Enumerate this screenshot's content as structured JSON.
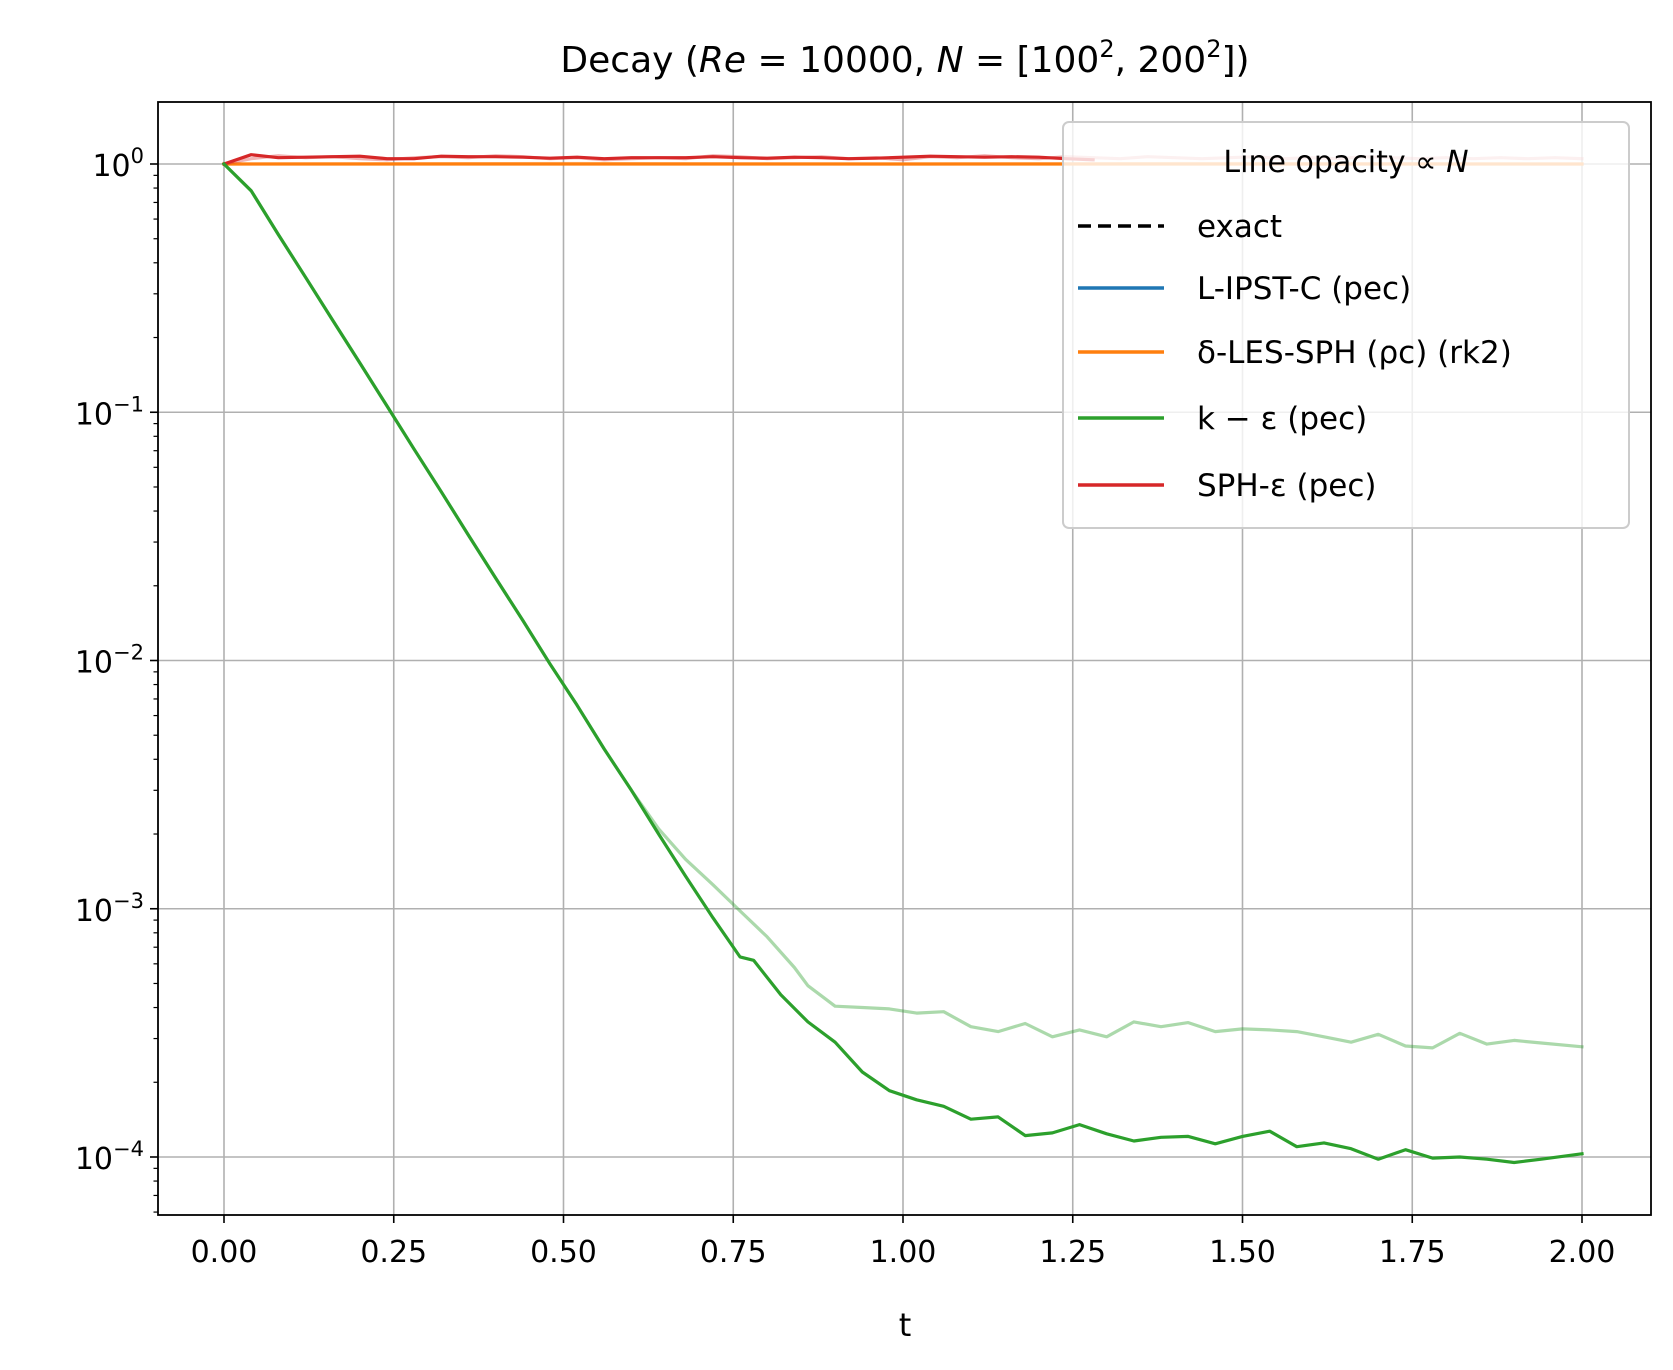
{
  "chart_data": {
    "type": "line",
    "title": "Decay  (Re = 10000, N = [100², 200²])",
    "title_parts": {
      "prefix": "Decay  (",
      "re_symbol": "Re",
      "re_value": " = 10000, ",
      "n_symbol": "N",
      "n_value": " = [100",
      "exp1": "2",
      "sep": ", 200",
      "exp2": "2",
      "suffix": "])"
    },
    "xlabel": "t",
    "ylabel": "",
    "xlim": [
      -0.1,
      2.1
    ],
    "ylim": [
      5.5e-05,
      1.8
    ],
    "yscale": "log",
    "grid": true,
    "x_ticks": [
      "0.00",
      "0.25",
      "0.50",
      "0.75",
      "1.00",
      "1.25",
      "1.50",
      "1.75",
      "2.00"
    ],
    "x_tick_values": [
      0,
      0.25,
      0.5,
      0.75,
      1.0,
      1.25,
      1.5,
      1.75,
      2.0
    ],
    "y_ticks": [
      {
        "value": 1,
        "base": "10",
        "exp": "0"
      },
      {
        "value": 0.1,
        "base": "10",
        "exp": "−1"
      },
      {
        "value": 0.01,
        "base": "10",
        "exp": "−2"
      },
      {
        "value": 0.001,
        "base": "10",
        "exp": "−3"
      },
      {
        "value": 0.0001,
        "base": "10",
        "exp": "−4"
      }
    ],
    "legend": {
      "placement": "upper right",
      "title": "Line opacity ∝ N",
      "title_text": "Line opacity  ∝  ",
      "title_symbol": "N",
      "entries": [
        {
          "label": "exact",
          "color": "#000000",
          "dash": true
        },
        {
          "label": "L-IPST-C (pec)",
          "color": "#1f77b4"
        },
        {
          "label": "δ-LES-SPH (ρc) (rk2)",
          "color": "#ff7f0e"
        },
        {
          "label": "k − ε (pec)",
          "color": "#2ca02c"
        },
        {
          "label": "SPH-ε (pec)",
          "color": "#d62728"
        }
      ]
    },
    "series": [
      {
        "name": "δ-LES-SPH (ρc) (rk2)",
        "color": "#ff7f0e",
        "runs": [
          {
            "opacity": 0.35,
            "x": [
              0,
              0.5,
              1.0,
              1.5,
              2.0
            ],
            "y": [
              1.0,
              1.005,
              1.0,
              1.005,
              1.0
            ]
          },
          {
            "opacity": 1.0,
            "x": [
              0,
              0.5,
              1.0,
              1.5,
              2.0
            ],
            "y": [
              1.0,
              1.0,
              1.0,
              1.0,
              1.0
            ]
          }
        ]
      },
      {
        "name": "SPH-ε (pec)",
        "color": "#d62728",
        "runs": [
          {
            "opacity": 0.35,
            "x": [
              0,
              0.04,
              0.08,
              0.12,
              0.16,
              0.2,
              0.24,
              0.28,
              0.32,
              0.36,
              0.4,
              0.44,
              0.48,
              0.52,
              0.56,
              0.6,
              0.64,
              0.68,
              0.72,
              0.76,
              0.8,
              0.84,
              0.88,
              0.92,
              0.96,
              1.0,
              1.04,
              1.08,
              1.12,
              1.16,
              1.2,
              1.24,
              1.28,
              1.32,
              1.36,
              1.4,
              1.44,
              1.48,
              1.52,
              1.56,
              1.6,
              1.64,
              1.68,
              1.72,
              1.76,
              1.8,
              1.84,
              1.88,
              1.92,
              1.96,
              2.0
            ],
            "y": [
              1.0,
              1.05,
              1.08,
              1.06,
              1.07,
              1.05,
              1.04,
              1.06,
              1.07,
              1.06,
              1.08,
              1.07,
              1.05,
              1.06,
              1.04,
              1.05,
              1.06,
              1.05,
              1.08,
              1.07,
              1.05,
              1.06,
              1.07,
              1.05,
              1.06,
              1.04,
              1.07,
              1.06,
              1.08,
              1.06,
              1.05,
              1.07,
              1.06,
              1.05,
              1.07,
              1.06,
              1.05,
              1.06,
              1.07,
              1.05,
              1.06,
              1.05,
              1.07,
              1.06,
              1.05,
              1.06,
              1.05,
              1.06,
              1.05,
              1.06,
              1.05
            ]
          },
          {
            "opacity": 1.0,
            "x": [
              0,
              0.04,
              0.08,
              0.12,
              0.16,
              0.2,
              0.24,
              0.28,
              0.32,
              0.36,
              0.4,
              0.44,
              0.48,
              0.52,
              0.56,
              0.6,
              0.64,
              0.68,
              0.72,
              0.76,
              0.8,
              0.84,
              0.88,
              0.92,
              0.96,
              1.0,
              1.04,
              1.08,
              1.12,
              1.16,
              1.2,
              1.24,
              1.28
            ],
            "y": [
              1.0,
              1.09,
              1.06,
              1.065,
              1.07,
              1.075,
              1.05,
              1.05,
              1.075,
              1.07,
              1.07,
              1.065,
              1.055,
              1.065,
              1.05,
              1.06,
              1.06,
              1.06,
              1.07,
              1.06,
              1.055,
              1.065,
              1.06,
              1.05,
              1.055,
              1.065,
              1.075,
              1.07,
              1.065,
              1.07,
              1.065,
              1.05,
              1.04
            ]
          }
        ]
      },
      {
        "name": "k − ε (pec)",
        "color": "#2ca02c",
        "runs": [
          {
            "opacity": 0.4,
            "x": [
              0,
              0.04,
              0.08,
              0.12,
              0.16,
              0.2,
              0.24,
              0.28,
              0.32,
              0.36,
              0.4,
              0.44,
              0.48,
              0.52,
              0.56,
              0.6,
              0.64,
              0.68,
              0.72,
              0.76,
              0.8,
              0.84,
              0.86,
              0.9,
              0.94,
              0.98,
              1.02,
              1.06,
              1.1,
              1.14,
              1.18,
              1.22,
              1.26,
              1.3,
              1.34,
              1.38,
              1.42,
              1.46,
              1.5,
              1.54,
              1.58,
              1.62,
              1.66,
              1.7,
              1.74,
              1.78,
              1.82,
              1.86,
              1.9,
              1.94,
              2.0
            ],
            "y": [
              1.0,
              0.78,
              0.52,
              0.35,
              0.235,
              0.158,
              0.106,
              0.071,
              0.0478,
              0.032,
              0.0215,
              0.0145,
              0.0097,
              0.0066,
              0.0044,
              0.003,
              0.0021,
              0.00158,
              0.00125,
              0.00098,
              0.00077,
              0.00058,
              0.00049,
              0.000405,
              0.0004,
              0.000395,
              0.00038,
              0.000385,
              0.000335,
              0.00032,
              0.000345,
              0.000305,
              0.000325,
              0.000305,
              0.00035,
              0.000335,
              0.000348,
              0.00032,
              0.000328,
              0.000325,
              0.00032,
              0.000305,
              0.00029,
              0.000312,
              0.00028,
              0.000275,
              0.000315,
              0.000285,
              0.000295,
              0.000288,
              0.000278
            ]
          },
          {
            "opacity": 1.0,
            "x": [
              0,
              0.04,
              0.08,
              0.12,
              0.16,
              0.2,
              0.24,
              0.28,
              0.32,
              0.36,
              0.4,
              0.44,
              0.48,
              0.52,
              0.56,
              0.6,
              0.64,
              0.68,
              0.72,
              0.76,
              0.78,
              0.82,
              0.86,
              0.9,
              0.94,
              0.98,
              1.02,
              1.06,
              1.1,
              1.14,
              1.18,
              1.22,
              1.26,
              1.3,
              1.34,
              1.38,
              1.42,
              1.46,
              1.5,
              1.54,
              1.58,
              1.62,
              1.66,
              1.7,
              1.74,
              1.78,
              1.82,
              1.86,
              1.9,
              1.94,
              2.0
            ],
            "y": [
              1.0,
              0.78,
              0.52,
              0.35,
              0.235,
              0.158,
              0.106,
              0.071,
              0.0478,
              0.032,
              0.0215,
              0.0145,
              0.0097,
              0.0066,
              0.0044,
              0.003,
              0.002,
              0.00135,
              0.00092,
              0.00064,
              0.00062,
              0.00045,
              0.00035,
              0.00029,
              0.00022,
              0.000185,
              0.00017,
              0.00016,
              0.000142,
              0.000145,
              0.000122,
              0.000125,
              0.000135,
              0.000124,
              0.000116,
              0.00012,
              0.000121,
              0.000113,
              0.000121,
              0.000127,
              0.00011,
              0.000114,
              0.000108,
              9.8e-05,
              0.000107,
              9.9e-05,
              0.0001,
              9.8e-05,
              9.5e-05,
              9.8e-05,
              0.000103
            ]
          }
        ]
      }
    ]
  }
}
